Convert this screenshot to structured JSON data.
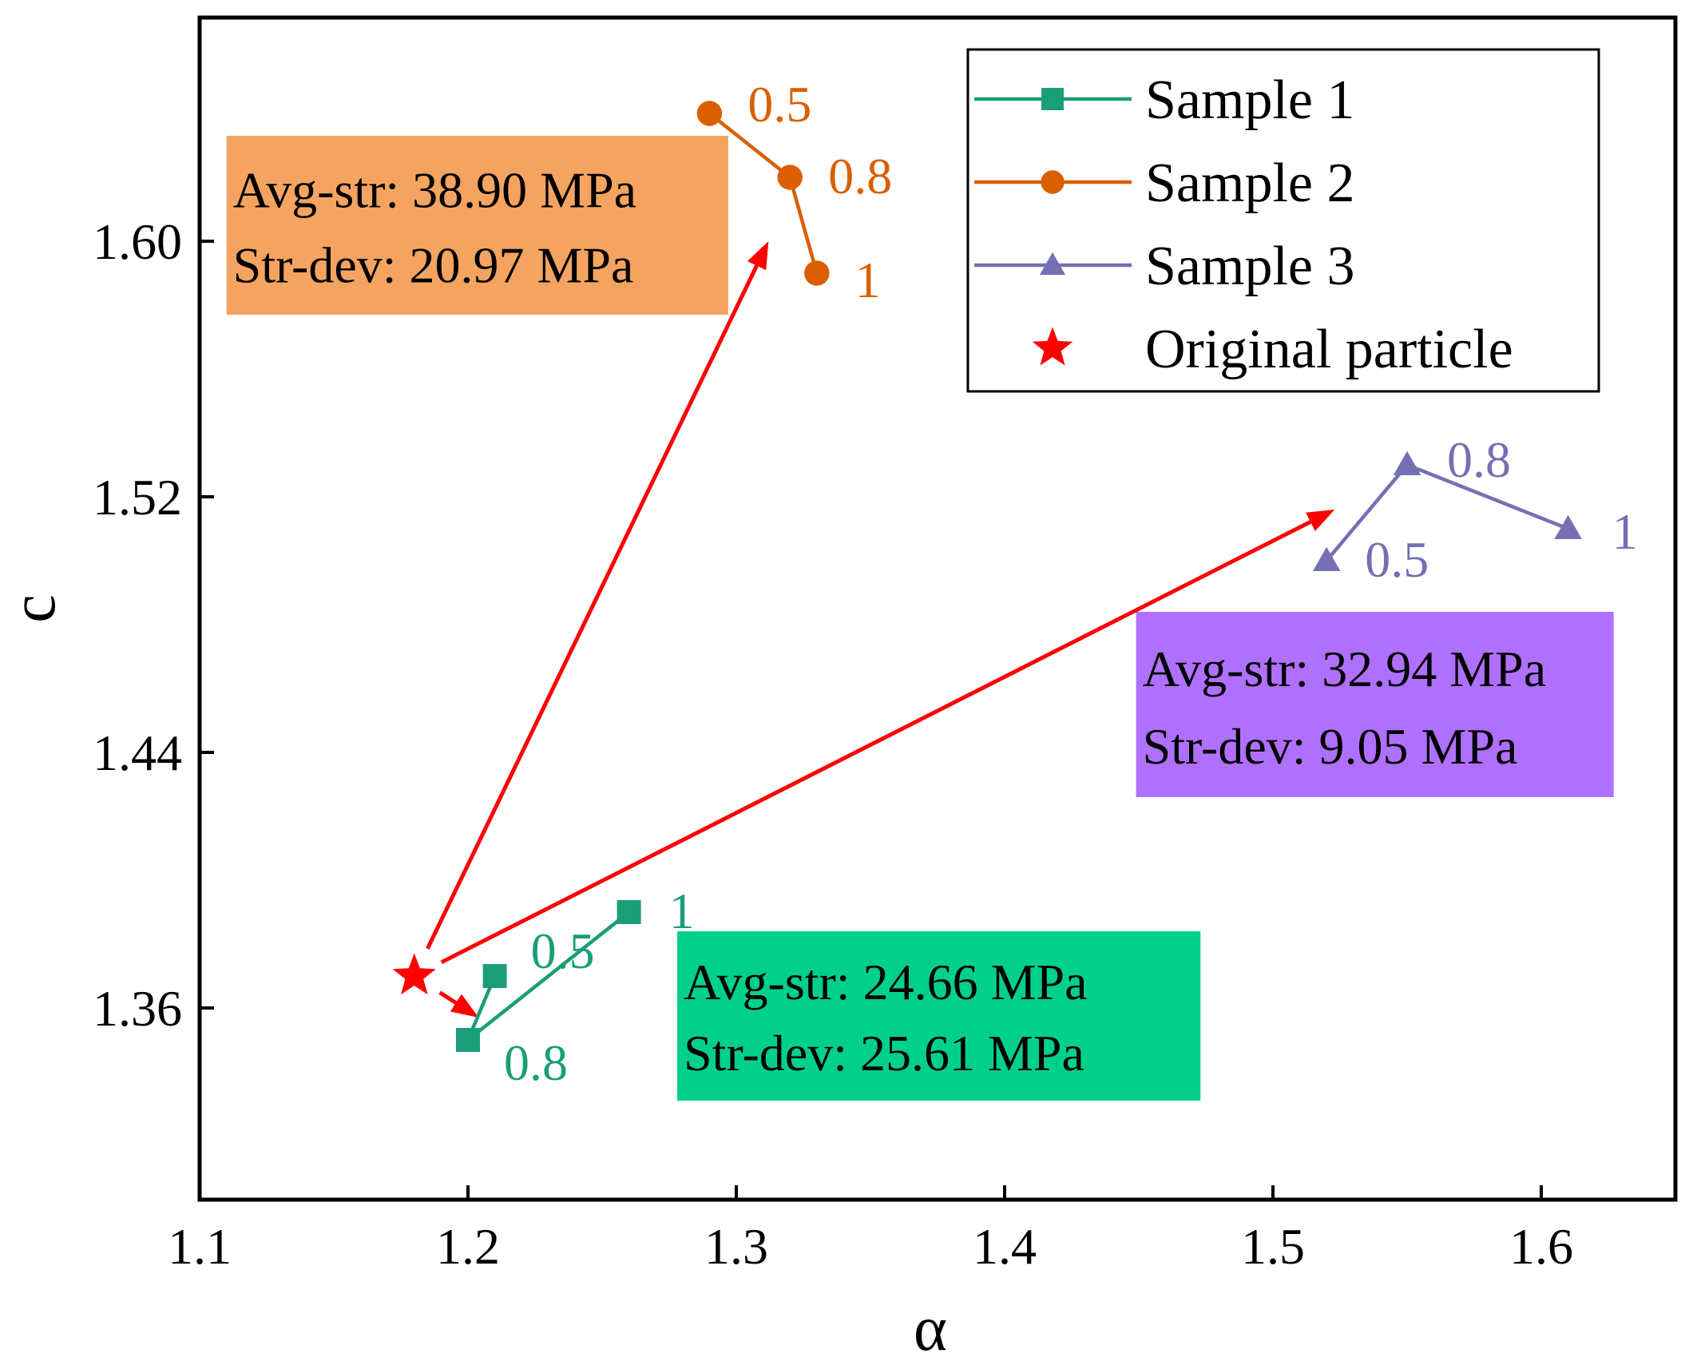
{
  "chart_data": {
    "type": "line",
    "xlabel": "α",
    "ylabel": "c",
    "xlim": [
      1.1,
      1.65
    ],
    "ylim": [
      1.3,
      1.67
    ],
    "xticks": [
      "1.1",
      "1.2",
      "1.3",
      "1.4",
      "1.5",
      "1.6"
    ],
    "yticks": [
      "1.36",
      "1.44",
      "1.52",
      "1.60"
    ],
    "grid": false,
    "legend_position": "top-right",
    "series": [
      {
        "name": "Sample 1",
        "color": "#1a9e77",
        "marker": "square",
        "points": [
          {
            "x": 1.21,
            "y": 1.37,
            "label": "0.5"
          },
          {
            "x": 1.2,
            "y": 1.35,
            "label": "0.8"
          },
          {
            "x": 1.26,
            "y": 1.39,
            "label": "1"
          }
        ]
      },
      {
        "name": "Sample 2",
        "color": "#d95f02",
        "marker": "circle",
        "points": [
          {
            "x": 1.29,
            "y": 1.64,
            "label": "0.5"
          },
          {
            "x": 1.32,
            "y": 1.62,
            "label": "0.8"
          },
          {
            "x": 1.33,
            "y": 1.59,
            "label": "1"
          }
        ]
      },
      {
        "name": "Sample 3",
        "color": "#7570b3",
        "marker": "triangle",
        "points": [
          {
            "x": 1.52,
            "y": 1.5,
            "label": "0.5"
          },
          {
            "x": 1.55,
            "y": 1.53,
            "label": "0.8"
          },
          {
            "x": 1.61,
            "y": 1.51,
            "label": "1"
          }
        ]
      },
      {
        "name": "Original particle",
        "color": "#ff0000",
        "marker": "star",
        "points": [
          {
            "x": 1.18,
            "y": 1.37
          }
        ]
      }
    ],
    "arrows": [
      {
        "from": [
          1.18,
          1.37
        ],
        "to": [
          1.312,
          1.6
        ]
      },
      {
        "from": [
          1.18,
          1.37
        ],
        "to": [
          1.204,
          1.357
        ]
      },
      {
        "from": [
          1.18,
          1.37
        ],
        "to": [
          1.523,
          1.516
        ]
      }
    ],
    "annotations": [
      {
        "lines": [
          "Avg-str: 38.90 MPa",
          "Str-dev: 20.97 MPa"
        ],
        "background": "#f4a460",
        "x_range": [
          1.11,
          1.297
        ],
        "y_range": [
          1.577,
          1.633
        ]
      },
      {
        "lines": [
          "Avg-str: 32.94 MPa",
          "Str-dev: 9.05 MPa"
        ],
        "background": "#b070ff",
        "x_range": [
          1.449,
          1.627
        ],
        "y_range": [
          1.426,
          1.484
        ]
      },
      {
        "lines": [
          "Avg-str: 24.66 MPa",
          "Str-dev: 25.61 MPa"
        ],
        "background": "#00d08a",
        "x_range": [
          1.278,
          1.473
        ],
        "y_range": [
          1.331,
          1.384
        ]
      }
    ]
  }
}
